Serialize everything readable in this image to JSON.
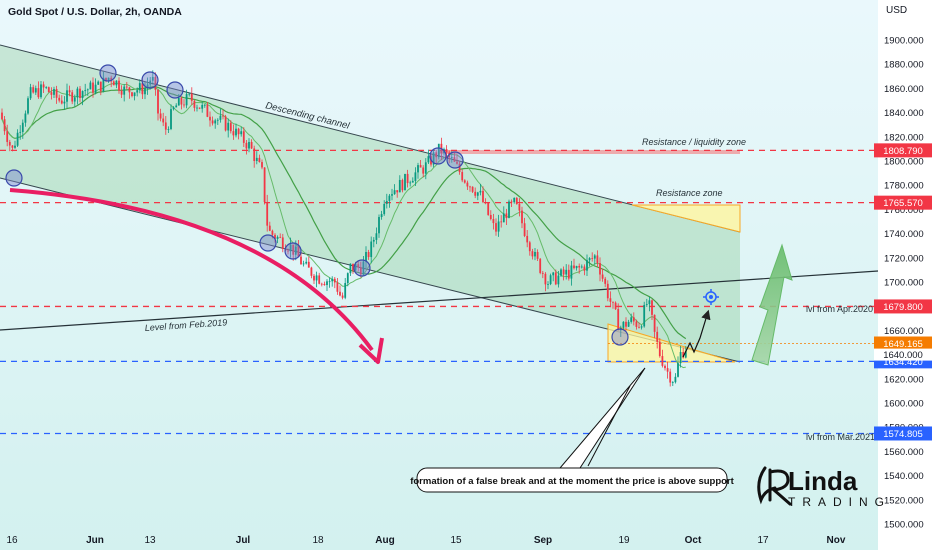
{
  "header": {
    "title": "Gold Spot / U.S. Dollar, 2h, OANDA",
    "currency": "USD"
  },
  "chart_data": {
    "type": "candlestick",
    "title": "Gold Spot / U.S. Dollar, 2h, OANDA",
    "ylabel": "USD",
    "ylim": [
      1500,
      1920
    ],
    "y_ticks": [
      1500,
      1520,
      1540,
      1560,
      1580,
      1600,
      1620,
      1640,
      1660,
      1680,
      1700,
      1720,
      1740,
      1760,
      1780,
      1800,
      1820,
      1840,
      1860,
      1880,
      1900
    ],
    "x_ticks": [
      {
        "label": "16",
        "bold": false
      },
      {
        "label": "Jun",
        "bold": true
      },
      {
        "label": "13",
        "bold": false
      },
      {
        "label": "Jul",
        "bold": true
      },
      {
        "label": "18",
        "bold": false
      },
      {
        "label": "Aug",
        "bold": true
      },
      {
        "label": "15",
        "bold": false
      },
      {
        "label": "Sep",
        "bold": true
      },
      {
        "label": "19",
        "bold": false
      },
      {
        "label": "Oct",
        "bold": true
      },
      {
        "label": "17",
        "bold": false
      },
      {
        "label": "Nov",
        "bold": true
      }
    ],
    "price_path": [
      [
        0,
        1840
      ],
      [
        12,
        1808
      ],
      [
        30,
        1855
      ],
      [
        45,
        1860
      ],
      [
        60,
        1850
      ],
      [
        80,
        1858
      ],
      [
        100,
        1862
      ],
      [
        110,
        1870
      ],
      [
        125,
        1858
      ],
      [
        145,
        1860
      ],
      [
        152,
        1870
      ],
      [
        158,
        1840
      ],
      [
        165,
        1825
      ],
      [
        175,
        1845
      ],
      [
        190,
        1852
      ],
      [
        210,
        1838
      ],
      [
        230,
        1828
      ],
      [
        250,
        1812
      ],
      [
        262,
        1790
      ],
      [
        268,
        1742
      ],
      [
        280,
        1735
      ],
      [
        292,
        1728
      ],
      [
        305,
        1712
      ],
      [
        320,
        1703
      ],
      [
        335,
        1700
      ],
      [
        342,
        1685
      ],
      [
        350,
        1712
      ],
      [
        362,
        1712
      ],
      [
        372,
        1730
      ],
      [
        385,
        1772
      ],
      [
        400,
        1780
      ],
      [
        412,
        1788
      ],
      [
        425,
        1795
      ],
      [
        440,
        1810
      ],
      [
        452,
        1800
      ],
      [
        465,
        1785
      ],
      [
        480,
        1772
      ],
      [
        495,
        1742
      ],
      [
        508,
        1760
      ],
      [
        515,
        1765
      ],
      [
        525,
        1742
      ],
      [
        535,
        1720
      ],
      [
        548,
        1700
      ],
      [
        560,
        1705
      ],
      [
        570,
        1708
      ],
      [
        582,
        1712
      ],
      [
        596,
        1722
      ],
      [
        604,
        1700
      ],
      [
        612,
        1680
      ],
      [
        620,
        1662
      ],
      [
        630,
        1668
      ],
      [
        640,
        1665
      ],
      [
        648,
        1685
      ],
      [
        655,
        1655
      ],
      [
        660,
        1640
      ],
      [
        668,
        1625
      ],
      [
        675,
        1618
      ],
      [
        680,
        1640
      ],
      [
        688,
        1648
      ]
    ],
    "horizontal_levels": [
      {
        "price": 1808.79,
        "label": "1808.790",
        "color": "#f23645"
      },
      {
        "price": 1765.57,
        "label": "1765.570",
        "color": "#f23645"
      },
      {
        "price": 1679.8,
        "label": "1679.800",
        "color": "#f23645"
      },
      {
        "price": 1649.165,
        "label": "1649.165",
        "color": "#f57c00"
      },
      {
        "price": 1634.42,
        "label": "1634.420",
        "color": "#2962ff"
      },
      {
        "price": 1574.805,
        "label": "1574.805",
        "color": "#2962ff"
      }
    ],
    "extra_price_label": "1640.000",
    "annotations": {
      "descending_channel": "Descending channel",
      "resistance_liquidity": "Resistance / liquidity zone",
      "resistance_zone": "Resistance zone",
      "level_feb": "Level from Feb.2019",
      "lvl_apr": "lvl from Apr.2020",
      "lvl_mar": "lvl from Mar.2021",
      "callout": "formation of a false break and at the moment the price is above support"
    }
  },
  "logo": {
    "text_main": "Linda",
    "text_sub": "TRADING"
  },
  "colors": {
    "channel_fill": "#4caf50",
    "red_dashed": "#f23645",
    "blue_dashed": "#2962ff",
    "orange": "#f57c00",
    "arrow_pink": "#e91e63",
    "candle_up": "#089981",
    "candle_down": "#f23645",
    "ma_green": "#4caf50",
    "bg_top": "#e7f7fb",
    "bg_bottom": "#d6f3f1"
  }
}
